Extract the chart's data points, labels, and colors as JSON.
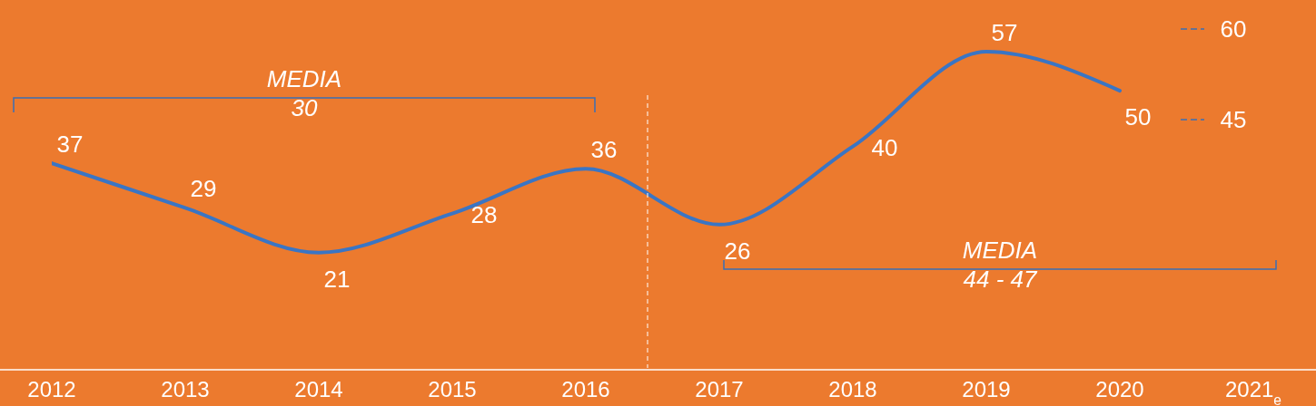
{
  "chart_data": {
    "type": "line",
    "categories": [
      "2012",
      "2013",
      "2014",
      "2015",
      "2016",
      "2017",
      "2018",
      "2019",
      "2020",
      "2021$_{e}$"
    ],
    "series": [
      {
        "color": "#3a75c4",
        "values": [
          37,
          29,
          21,
          28,
          36,
          26,
          40,
          57,
          50,
          null
        ]
      }
    ],
    "data_labels": true,
    "grid": false,
    "legend": false,
    "marker": "none",
    "line_style": "solid",
    "tick_labels": "x",
    "annotations": [
      "MEDIA\n30",
      "MEDIA\n44 - 47",
      "60",
      "45"
    ]
  }
}
